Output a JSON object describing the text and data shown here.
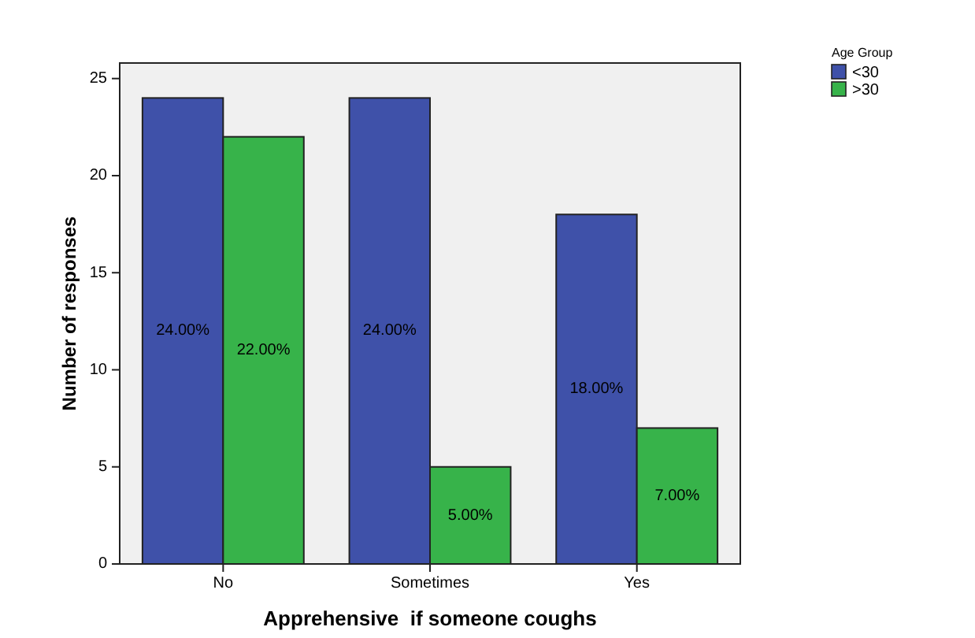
{
  "chart_data": {
    "type": "bar",
    "xlabel": "Apprehensive  if someone coughs",
    "ylabel": "Number of responses",
    "legend_title": "Age Group",
    "legend": "top right",
    "categories": [
      "No",
      "Sometimes",
      "Yes"
    ],
    "series": [
      {
        "name": "<30",
        "color": "#3f51a9",
        "values": [
          24,
          24,
          18
        ],
        "value_labels": [
          "24.00%",
          "24.00%",
          "18.00%"
        ]
      },
      {
        "name": ">30",
        "color": "#37b34a",
        "values": [
          22,
          5,
          7
        ],
        "value_labels": [
          "22.00%",
          "5.00%",
          "7.00%"
        ]
      }
    ],
    "ylim": [
      0,
      25.8
    ],
    "yticks": [
      0,
      5,
      10,
      15,
      20,
      25
    ],
    "grid": false
  }
}
